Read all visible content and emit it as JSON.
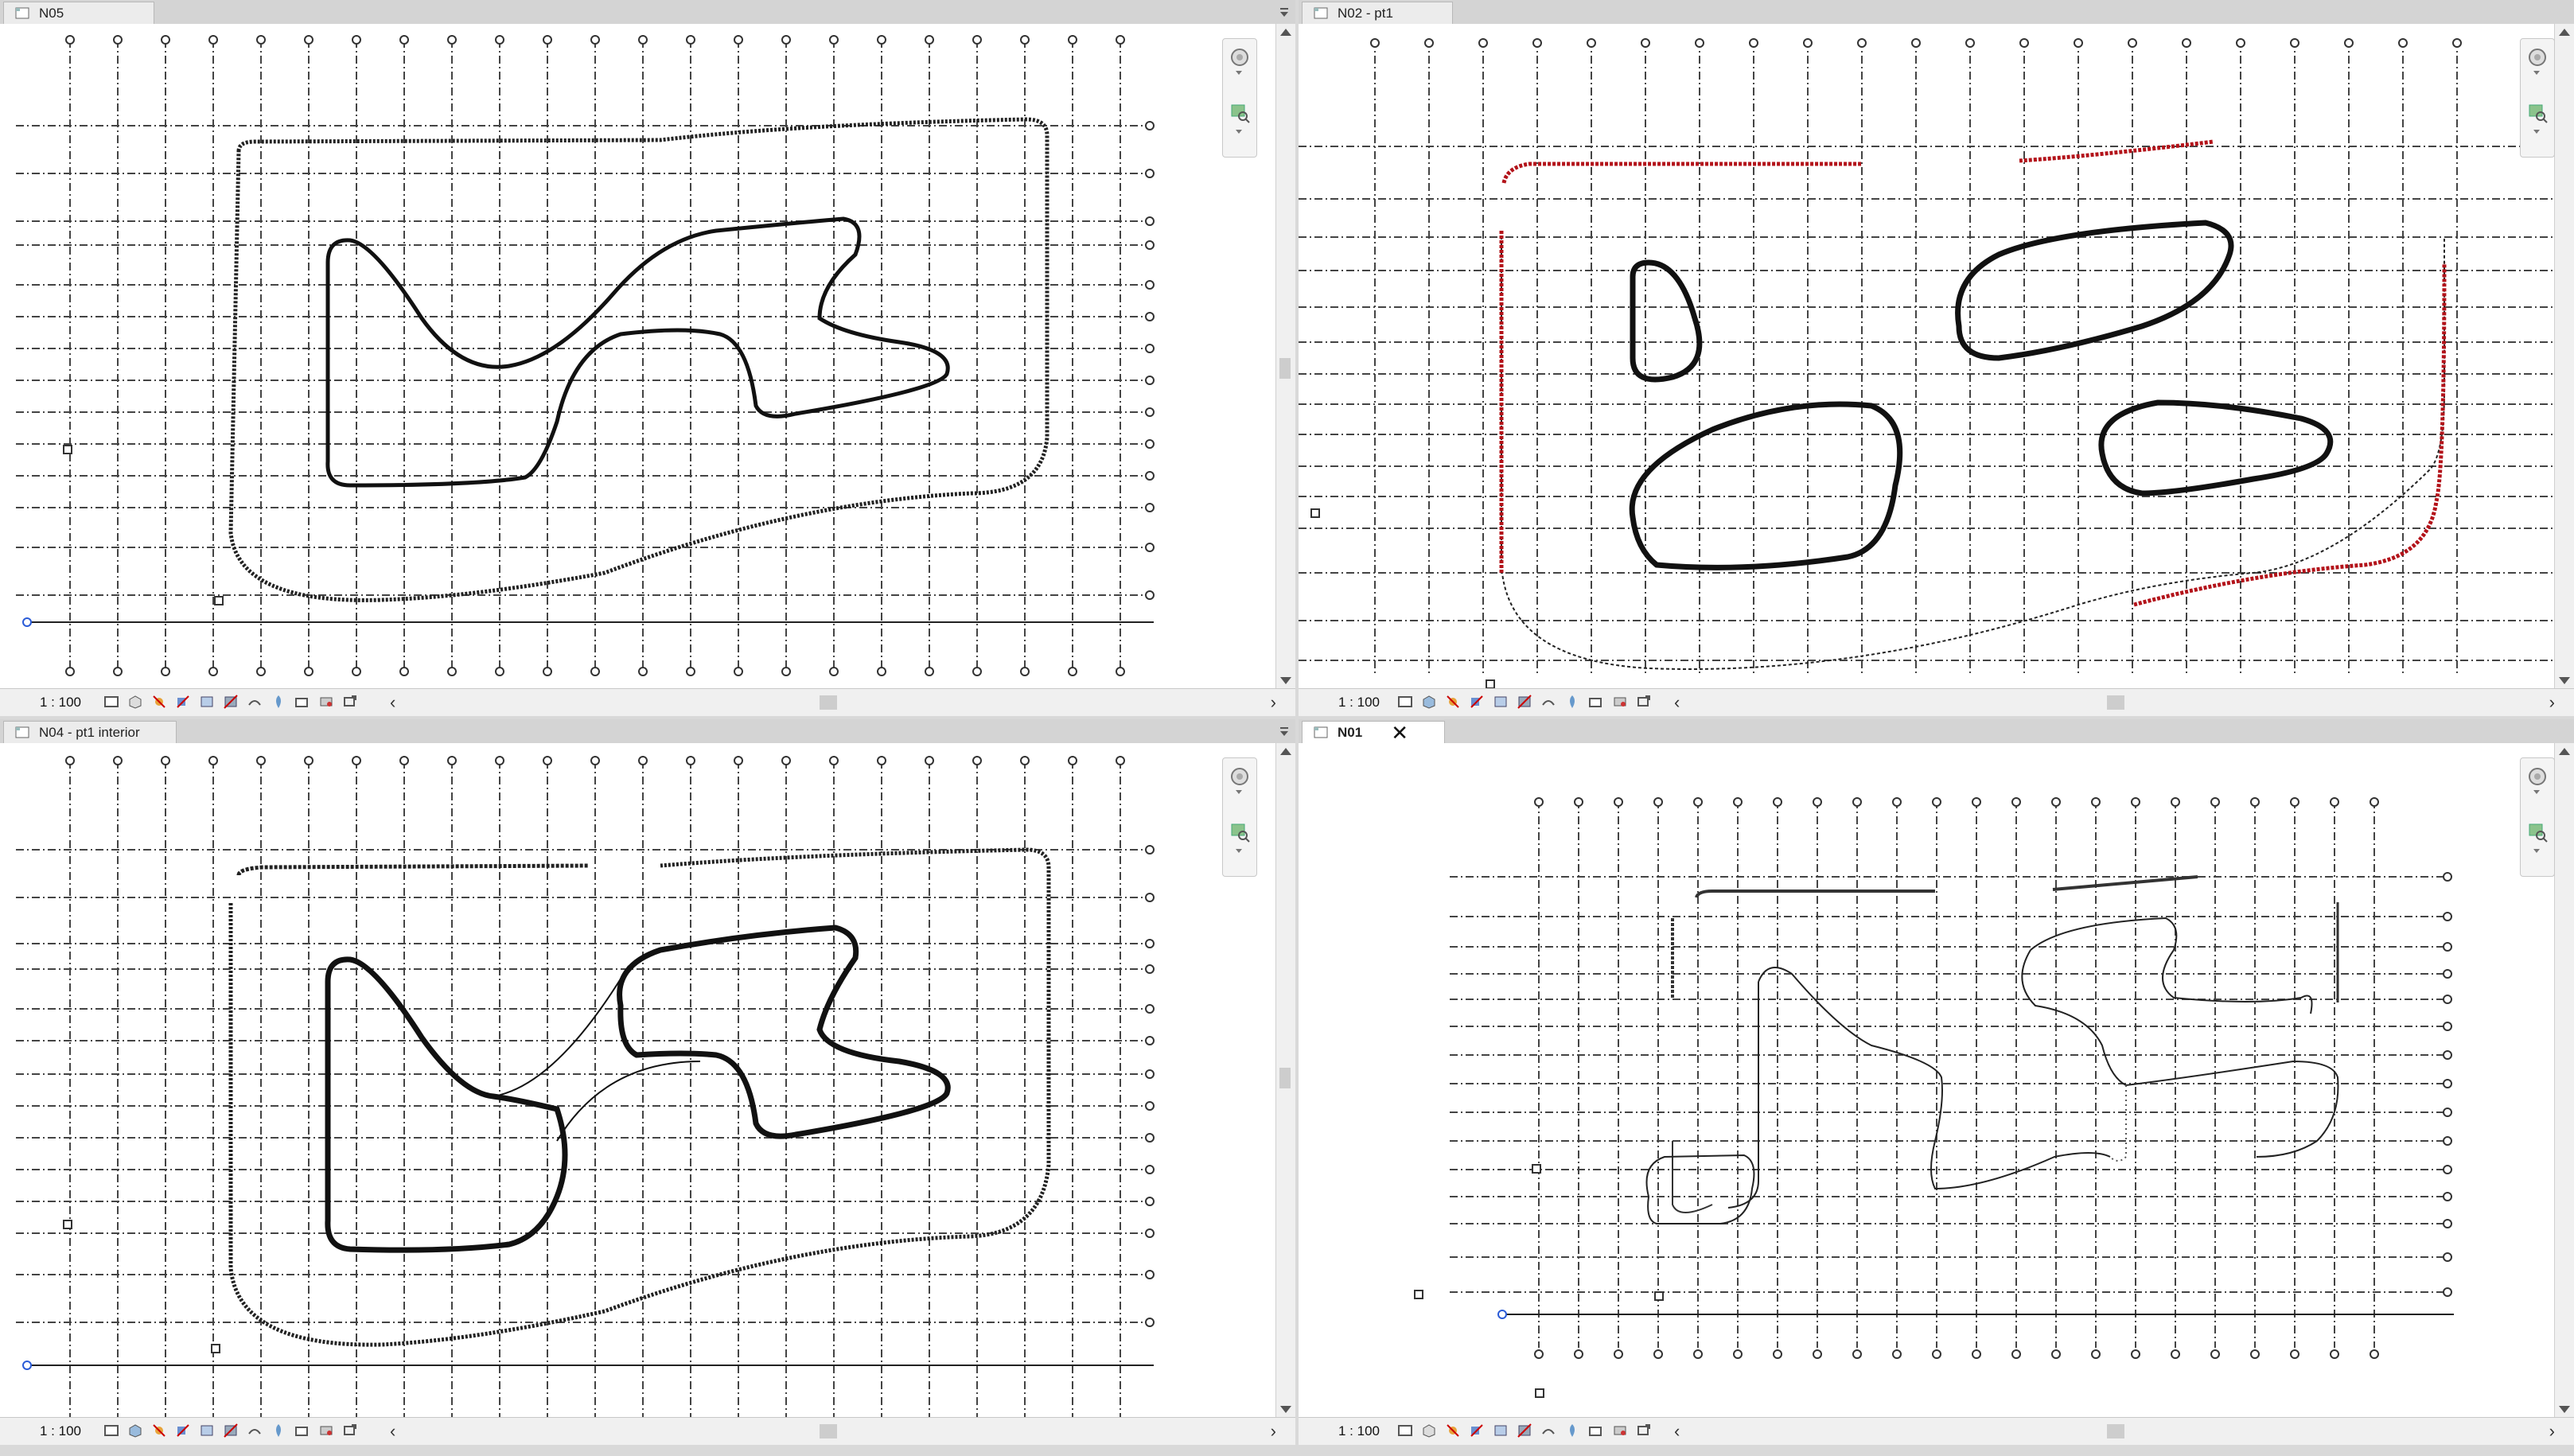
{
  "views": [
    {
      "tab_title": "N05",
      "scale": "1 : 100",
      "active": false
    },
    {
      "tab_title": "N02 - pt1",
      "scale": "1 : 100",
      "active": false
    },
    {
      "tab_title": "N04 - pt1 interior",
      "scale": "1 : 100",
      "active": false
    },
    {
      "tab_title": "N01",
      "scale": "1 : 100",
      "active": true,
      "close_glyph": "✕"
    }
  ],
  "statusbar": {
    "scroll_left_glyph": "‹",
    "scroll_right_glyph": "›"
  },
  "icons": {
    "tab": "view-plan-icon",
    "menu": "tab-menu-icon",
    "nav_wheel": "steering-wheel-icon",
    "nav_zoom": "zoom-region-icon",
    "statusbar": [
      "detail-level-icon",
      "visual-style-icon",
      "sun-path-icon",
      "shadows-icon",
      "crop-view-icon",
      "show-crop-icon",
      "unlock-3d-icon",
      "temporary-hide-icon",
      "reveal-hidden-icon",
      "analytical-model-icon",
      "highlight-displacement-icon"
    ]
  },
  "colors": {
    "grid_line": "#333333",
    "wall_heavy": "#111111",
    "wall_red": "#b3131a",
    "tab_bar": "#d4d4d4",
    "background": "#ffffff"
  }
}
